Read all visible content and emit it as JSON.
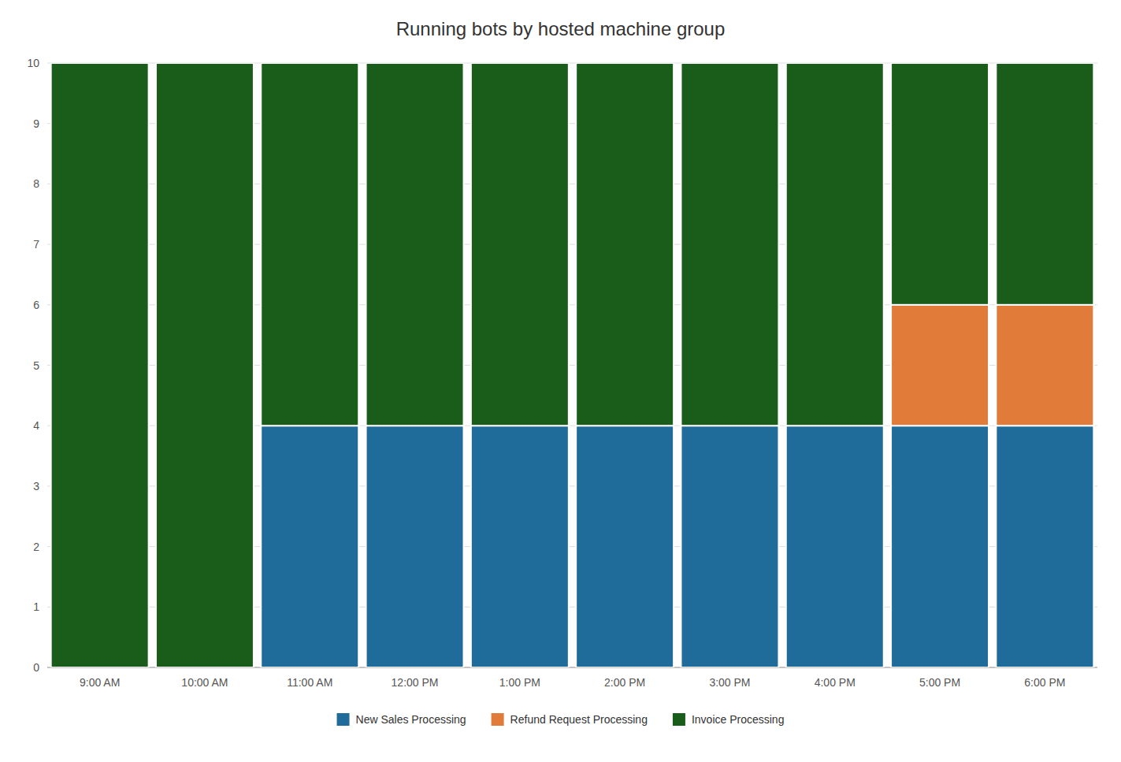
{
  "chart_data": {
    "type": "bar",
    "title": "Running bots by hosted machine group",
    "categories": [
      "9:00 AM",
      "10:00 AM",
      "11:00 AM",
      "12:00 PM",
      "1:00 PM",
      "2:00 PM",
      "3:00 PM",
      "4:00 PM",
      "5:00 PM",
      "6:00 PM"
    ],
    "series": [
      {
        "name": "New Sales Processing",
        "color": "#1F6B9A",
        "values": [
          0,
          0,
          4,
          4,
          4,
          4,
          4,
          4,
          4,
          4
        ]
      },
      {
        "name": "Refund Request Processing",
        "color": "#E07B39",
        "values": [
          0,
          0,
          0,
          0,
          0,
          0,
          0,
          0,
          2,
          2
        ]
      },
      {
        "name": "Invoice Processing",
        "color": "#1A5C1A",
        "values": [
          10,
          10,
          6,
          6,
          6,
          6,
          6,
          6,
          4,
          4
        ]
      }
    ],
    "stacked": true,
    "ylim": [
      0,
      10
    ],
    "yticks": [
      0,
      1,
      2,
      3,
      4,
      5,
      6,
      7,
      8,
      9,
      10
    ],
    "grid": true,
    "legend": "bottom"
  }
}
